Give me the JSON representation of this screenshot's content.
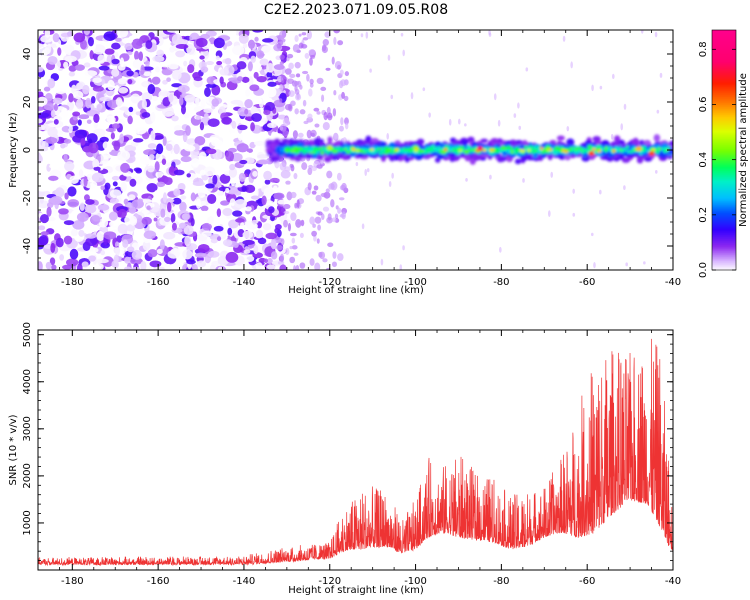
{
  "title": "C2E2.2023.071.09.05.R08",
  "chart_data": [
    {
      "type": "heatmap",
      "xlabel": "Height of straight line (km)",
      "ylabel": "Frequency (Hz)",
      "xlim": [
        -188,
        -40
      ],
      "ylim": [
        -50,
        50
      ],
      "xticks": [
        -180,
        -160,
        -140,
        -120,
        -100,
        -80,
        -60,
        -40
      ],
      "yticks": [
        -40,
        -20,
        0,
        20,
        40
      ],
      "colorbar": {
        "label": "Normalized spectral amplitude",
        "range": [
          0,
          0.87
        ],
        "ticks": [
          0.0,
          0.2,
          0.4,
          0.6,
          0.8
        ]
      },
      "description_points": [
        {
          "x": -85,
          "y": 0.5,
          "amplitude": 0.85
        },
        {
          "x": -59,
          "y": -1.5,
          "amplitude": 0.75
        },
        {
          "x": -45,
          "y": -1.5,
          "amplitude": 0.75
        },
        {
          "x": -48,
          "y": 0.5,
          "amplitude": 0.65
        },
        {
          "x": -120,
          "y": 1,
          "amplitude": 0.55
        },
        {
          "x": -100,
          "y": 1,
          "amplitude": 0.5
        }
      ]
    },
    {
      "type": "line",
      "xlabel": "Height of straight line (km)",
      "ylabel": "SNR (10 * v/v)",
      "xlim": [
        -188,
        -40
      ],
      "ylim": [
        0,
        5100
      ],
      "xticks": [
        -180,
        -160,
        -140,
        -120,
        -100,
        -80,
        -60,
        -40
      ],
      "yticks": [
        1000,
        2000,
        3000,
        4000,
        5000
      ],
      "color": "#ee3333",
      "envelope": {
        "x": [
          -188,
          -140,
          -130,
          -120,
          -117,
          -112,
          -107,
          -103,
          -100,
          -97,
          -94,
          -90,
          -86,
          -82,
          -78,
          -74,
          -70,
          -66,
          -62,
          -58,
          -54,
          -50,
          -46,
          -43,
          -41,
          -40
        ],
        "base": [
          120,
          120,
          180,
          250,
          400,
          450,
          500,
          350,
          450,
          700,
          800,
          700,
          650,
          600,
          450,
          500,
          700,
          800,
          700,
          800,
          1200,
          1500,
          1400,
          900,
          500,
          400
        ],
        "peak": [
          250,
          300,
          500,
          600,
          1300,
          1800,
          1700,
          1100,
          1500,
          2400,
          2200,
          2500,
          2100,
          2000,
          1600,
          1700,
          1800,
          2400,
          3500,
          4700,
          4800,
          4600,
          5000,
          4800,
          2500,
          1200
        ]
      }
    }
  ]
}
